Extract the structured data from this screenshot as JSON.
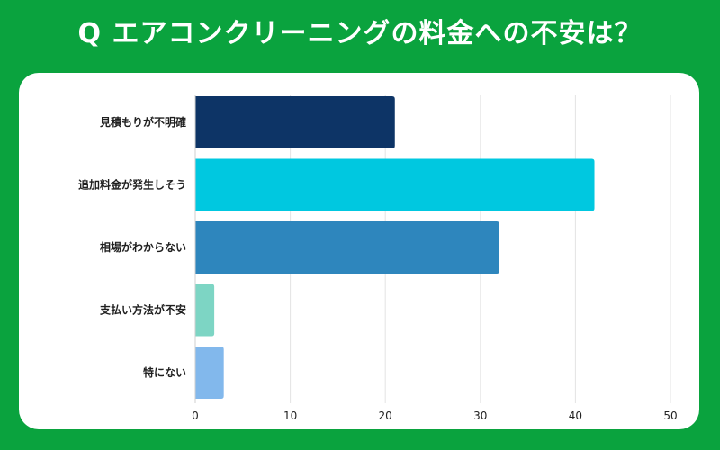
{
  "title": "Q エアコンクリーニングの料金への不安は？",
  "colors": {
    "background": "#0aa33e",
    "card": "#ffffff",
    "gridline": "#e3e3e3"
  },
  "chart_data": {
    "type": "bar",
    "orientation": "horizontal",
    "title": "Q エアコンクリーニングの料金への不安は？",
    "categories": [
      "見積もりが不明確",
      "追加料金が発生しそう",
      "相場がわからない",
      "支払い方法が不安",
      "特にない"
    ],
    "values": [
      21,
      42,
      32,
      2,
      3
    ],
    "bar_colors": [
      "#0d3466",
      "#00c8e0",
      "#2e86bd",
      "#7dd5c4",
      "#82b8ec"
    ],
    "xlim": [
      0,
      50
    ],
    "xticks": [
      0,
      10,
      20,
      30,
      40,
      50
    ],
    "xlabel": "",
    "ylabel": "",
    "grid": true
  }
}
